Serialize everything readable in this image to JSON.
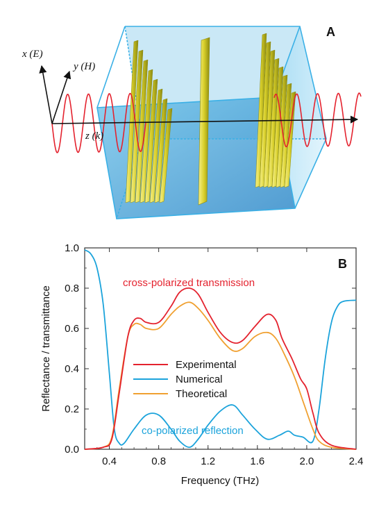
{
  "panel_a": {
    "label": "A",
    "axes": {
      "x": "x (E)",
      "y": "y (H)",
      "z": "z (k)"
    }
  },
  "colors": {
    "wave": "#e4222e",
    "box_front": "#2f8fd0",
    "box_edge": "#3ab0e6",
    "grating": "#d8cf2a",
    "experimental": "#e4222e",
    "numerical": "#1ba3db",
    "theoretical": "#f0a030"
  },
  "chart_data": {
    "type": "line",
    "panel_label": "B",
    "xlabel": "Frequency (THz)",
    "ylabel": "Reflectance / transmittance",
    "xlim": [
      0.2,
      2.4
    ],
    "ylim": [
      0.0,
      1.0
    ],
    "xticks": [
      "0.4",
      "0.8",
      "1.2",
      "1.6",
      "2.0",
      "2.4"
    ],
    "yticks": [
      "0.0",
      "0.2",
      "0.4",
      "0.6",
      "0.8",
      "1.0"
    ],
    "annotations": {
      "transmission": "cross-polarized transmission",
      "reflection": "co-polarized reflection"
    },
    "legend_position": "center-left",
    "series": [
      {
        "name": "Experimental",
        "color": "#e4222e",
        "x": [
          0.2,
          0.35,
          0.42,
          0.48,
          0.55,
          0.6,
          0.65,
          0.7,
          0.8,
          0.9,
          0.97,
          1.05,
          1.12,
          1.2,
          1.3,
          1.4,
          1.48,
          1.58,
          1.68,
          1.75,
          1.8,
          1.88,
          1.95,
          2.0,
          2.05,
          2.1,
          2.2,
          2.4
        ],
        "y": [
          0.0,
          0.01,
          0.05,
          0.28,
          0.56,
          0.64,
          0.65,
          0.63,
          0.63,
          0.71,
          0.78,
          0.8,
          0.77,
          0.68,
          0.58,
          0.53,
          0.54,
          0.61,
          0.67,
          0.64,
          0.55,
          0.45,
          0.35,
          0.3,
          0.18,
          0.08,
          0.02,
          0.0
        ]
      },
      {
        "name": "Numerical",
        "color": "#1ba3db",
        "x": [
          0.2,
          0.25,
          0.3,
          0.35,
          0.4,
          0.44,
          0.48,
          0.52,
          0.6,
          0.7,
          0.8,
          0.9,
          0.97,
          1.05,
          1.12,
          1.2,
          1.3,
          1.4,
          1.48,
          1.58,
          1.68,
          1.78,
          1.85,
          1.9,
          1.97,
          2.05,
          2.1,
          2.15,
          2.2,
          2.25,
          2.3,
          2.4
        ],
        "y": [
          0.99,
          0.97,
          0.9,
          0.72,
          0.38,
          0.1,
          0.03,
          0.03,
          0.1,
          0.17,
          0.17,
          0.1,
          0.04,
          0.01,
          0.05,
          0.12,
          0.19,
          0.22,
          0.17,
          0.1,
          0.05,
          0.07,
          0.09,
          0.07,
          0.06,
          0.04,
          0.2,
          0.45,
          0.63,
          0.71,
          0.735,
          0.74
        ]
      },
      {
        "name": "Theoretical",
        "color": "#f0a030",
        "x": [
          0.2,
          0.35,
          0.42,
          0.48,
          0.55,
          0.6,
          0.65,
          0.7,
          0.8,
          0.9,
          0.97,
          1.05,
          1.12,
          1.2,
          1.3,
          1.4,
          1.48,
          1.58,
          1.68,
          1.75,
          1.82,
          1.9,
          1.98,
          2.05,
          2.1,
          2.2,
          2.4
        ],
        "y": [
          0.0,
          0.01,
          0.06,
          0.3,
          0.56,
          0.62,
          0.62,
          0.6,
          0.6,
          0.67,
          0.71,
          0.73,
          0.7,
          0.64,
          0.55,
          0.49,
          0.5,
          0.56,
          0.58,
          0.55,
          0.47,
          0.36,
          0.22,
          0.1,
          0.04,
          0.01,
          0.0
        ]
      }
    ]
  }
}
